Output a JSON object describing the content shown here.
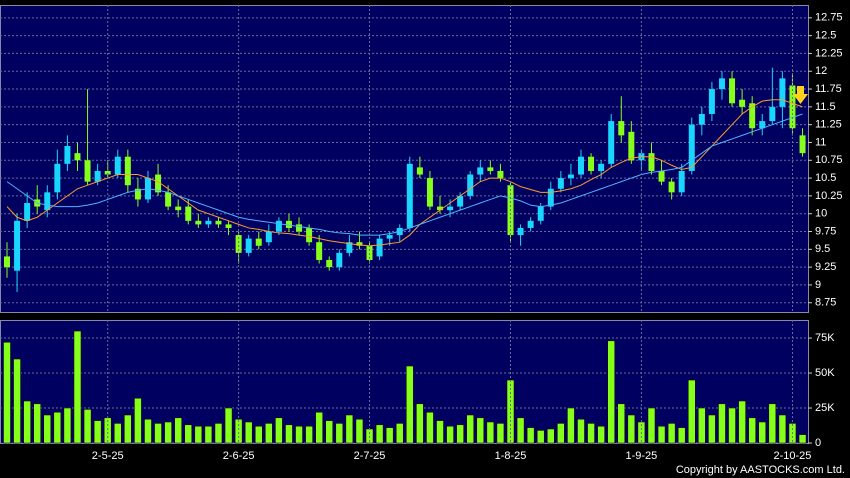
{
  "chart_data": [
    {
      "type": "candlestick",
      "up_color": "#19d6ff",
      "down_color": "#86ff1a",
      "open": [
        9.4,
        9.2,
        9.9,
        10.2,
        10.05,
        10.3,
        10.7,
        10.85,
        10.75,
        10.45,
        10.6,
        10.55,
        10.8,
        10.35,
        10.2,
        10.55,
        10.3,
        10.1,
        10.1,
        9.9,
        9.85,
        9.9,
        9.85,
        9.7,
        9.45,
        9.65,
        9.6,
        9.75,
        9.9,
        9.85,
        9.8,
        9.6,
        9.35,
        9.25,
        9.45,
        9.6,
        9.55,
        9.4,
        9.65,
        9.7,
        9.8,
        10.65,
        10.5,
        10.1,
        10.05,
        10.1,
        10.25,
        10.55,
        10.65,
        10.6,
        10.4,
        9.7,
        9.8,
        9.9,
        10.1,
        10.35,
        10.5,
        10.55,
        10.8,
        10.6,
        10.7,
        11.3,
        11.15,
        10.75,
        10.85,
        10.6,
        10.45,
        10.3,
        10.6,
        11.25,
        11.4,
        11.75,
        11.9,
        11.6,
        11.55,
        11.2,
        11.3,
        11.5,
        11.8,
        11.1
      ],
      "high": [
        9.6,
        10.0,
        10.3,
        10.4,
        10.4,
        10.9,
        11.1,
        11.0,
        11.75,
        10.7,
        10.75,
        10.9,
        10.9,
        10.5,
        10.6,
        10.7,
        10.4,
        10.2,
        10.2,
        10.0,
        9.95,
        9.95,
        9.9,
        9.75,
        9.7,
        9.75,
        9.85,
        9.95,
        10.0,
        9.95,
        9.85,
        9.7,
        9.4,
        9.5,
        9.7,
        9.75,
        9.6,
        9.7,
        9.75,
        9.85,
        10.8,
        10.8,
        10.6,
        10.25,
        10.2,
        10.3,
        10.6,
        10.75,
        10.75,
        10.7,
        10.45,
        9.85,
        9.95,
        10.15,
        10.45,
        10.6,
        10.7,
        10.9,
        10.85,
        10.75,
        11.4,
        11.65,
        11.3,
        10.9,
        11.0,
        10.75,
        10.5,
        10.7,
        11.35,
        11.5,
        11.85,
        12.0,
        12.0,
        11.75,
        11.65,
        11.4,
        12.05,
        12.0,
        11.95,
        11.2
      ],
      "low": [
        9.1,
        8.9,
        9.8,
        10.0,
        9.95,
        10.2,
        10.6,
        10.6,
        10.4,
        10.4,
        10.5,
        10.5,
        10.3,
        10.1,
        10.15,
        10.25,
        10.05,
        9.95,
        9.85,
        9.8,
        9.8,
        9.8,
        9.7,
        9.3,
        9.4,
        9.5,
        9.55,
        9.7,
        9.75,
        9.7,
        9.55,
        9.3,
        9.2,
        9.2,
        9.4,
        9.5,
        9.3,
        9.35,
        9.55,
        9.6,
        9.75,
        10.5,
        10.05,
        10.0,
        9.95,
        10.05,
        10.2,
        10.45,
        10.55,
        10.45,
        9.6,
        9.55,
        9.75,
        9.85,
        10.05,
        10.3,
        10.4,
        10.5,
        10.55,
        10.5,
        10.65,
        11.0,
        10.7,
        10.6,
        10.55,
        10.4,
        10.2,
        10.25,
        10.55,
        11.1,
        11.3,
        11.6,
        11.5,
        11.4,
        11.1,
        11.1,
        11.25,
        11.2,
        11.1,
        10.8
      ],
      "close": [
        9.25,
        9.9,
        10.15,
        10.1,
        10.3,
        10.7,
        10.95,
        10.75,
        10.45,
        10.6,
        10.55,
        10.8,
        10.4,
        10.2,
        10.5,
        10.3,
        10.1,
        10.05,
        9.9,
        9.85,
        9.9,
        9.85,
        9.8,
        9.45,
        9.65,
        9.55,
        9.75,
        9.9,
        9.8,
        9.75,
        9.6,
        9.35,
        9.25,
        9.45,
        9.6,
        9.55,
        9.35,
        9.65,
        9.7,
        9.8,
        10.7,
        10.55,
        10.1,
        10.05,
        10.1,
        10.25,
        10.55,
        10.65,
        10.6,
        10.5,
        9.7,
        9.8,
        9.9,
        10.1,
        10.35,
        10.5,
        10.55,
        10.8,
        10.6,
        10.7,
        11.3,
        11.1,
        10.75,
        10.85,
        10.6,
        10.45,
        10.3,
        10.6,
        11.25,
        11.4,
        11.75,
        11.9,
        11.55,
        11.5,
        11.2,
        11.3,
        11.5,
        11.9,
        11.2,
        10.85
      ],
      "series": [
        {
          "color": "#ff9a2e",
          "values": [
            10.1,
            9.95,
            9.9,
            9.95,
            10.05,
            10.15,
            10.25,
            10.35,
            10.4,
            10.45,
            10.5,
            10.55,
            10.55,
            10.55,
            10.5,
            10.45,
            10.35,
            10.25,
            10.15,
            10.05,
            10.0,
            9.95,
            9.9,
            9.85,
            9.8,
            9.78,
            9.75,
            9.73,
            9.72,
            9.7,
            9.68,
            9.65,
            9.62,
            9.6,
            9.58,
            9.56,
            9.55,
            9.56,
            9.58,
            9.6,
            9.7,
            9.85,
            9.95,
            10.05,
            10.15,
            10.25,
            10.35,
            10.45,
            10.5,
            10.5,
            10.45,
            10.38,
            10.34,
            10.3,
            10.3,
            10.32,
            10.35,
            10.4,
            10.48,
            10.55,
            10.65,
            10.72,
            10.78,
            10.8,
            10.8,
            10.75,
            10.68,
            10.62,
            10.65,
            10.8,
            10.95,
            11.1,
            11.25,
            11.4,
            11.5,
            11.58,
            11.6,
            11.6,
            11.55,
            11.5
          ]
        },
        {
          "color": "#4fb4ff",
          "values": [
            10.45,
            10.35,
            10.25,
            10.15,
            10.12,
            10.1,
            10.1,
            10.1,
            10.12,
            10.15,
            10.2,
            10.25,
            10.3,
            10.33,
            10.35,
            10.33,
            10.3,
            10.25,
            10.2,
            10.15,
            10.1,
            10.05,
            10.0,
            9.95,
            9.92,
            9.9,
            9.88,
            9.86,
            9.84,
            9.82,
            9.8,
            9.78,
            9.75,
            9.73,
            9.72,
            9.7,
            9.7,
            9.7,
            9.72,
            9.75,
            9.8,
            9.85,
            9.9,
            9.95,
            10.0,
            10.05,
            10.1,
            10.15,
            10.2,
            10.25,
            10.22,
            10.18,
            10.12,
            10.1,
            10.12,
            10.15,
            10.2,
            10.25,
            10.3,
            10.35,
            10.4,
            10.45,
            10.5,
            10.55,
            10.58,
            10.6,
            10.62,
            10.65,
            10.75,
            10.85,
            10.95,
            11.0,
            11.05,
            11.1,
            11.15,
            11.2,
            11.25,
            11.3,
            11.35,
            11.4
          ]
        }
      ],
      "ylim": [
        8.62,
        12.93
      ],
      "yticks": [
        8.75,
        9,
        9.25,
        9.5,
        9.75,
        10,
        10.25,
        10.5,
        10.75,
        11,
        11.25,
        11.5,
        11.75,
        12,
        12.25,
        12.5,
        12.75
      ],
      "grid": true
    },
    {
      "type": "bar",
      "color": "#86ff1a",
      "categories": [
        null,
        null,
        null,
        null,
        null,
        null,
        null,
        null,
        null,
        null,
        "2-5-25",
        null,
        null,
        null,
        null,
        null,
        null,
        null,
        null,
        null,
        null,
        null,
        null,
        "2-6-25",
        null,
        null,
        null,
        null,
        null,
        null,
        null,
        null,
        null,
        null,
        null,
        null,
        "2-7-25",
        null,
        null,
        null,
        null,
        null,
        null,
        null,
        null,
        null,
        null,
        null,
        null,
        null,
        "1-8-25",
        null,
        null,
        null,
        null,
        null,
        null,
        null,
        null,
        null,
        null,
        null,
        null,
        "1-9-25",
        null,
        null,
        null,
        null,
        null,
        null,
        null,
        null,
        null,
        null,
        null,
        null,
        null,
        null,
        "2-10-25",
        null
      ],
      "values": [
        72000,
        60000,
        30000,
        28000,
        20000,
        22000,
        25000,
        80000,
        24000,
        16000,
        18000,
        14000,
        20000,
        32000,
        17000,
        14000,
        15000,
        18000,
        13000,
        12000,
        12000,
        14000,
        25000,
        17000,
        15000,
        12000,
        14000,
        18000,
        13000,
        12000,
        12000,
        22000,
        16000,
        14000,
        20000,
        17000,
        10000,
        13000,
        11000,
        14000,
        55000,
        28000,
        22000,
        16000,
        12000,
        13000,
        20000,
        18000,
        15000,
        14000,
        45000,
        18000,
        11000,
        9000,
        10000,
        14000,
        25000,
        17000,
        14000,
        12000,
        73000,
        28000,
        20000,
        15000,
        25000,
        12000,
        14000,
        11000,
        45000,
        25000,
        20000,
        28000,
        25000,
        30000,
        18000,
        15000,
        28000,
        20000,
        14000,
        6000
      ],
      "ylim": [
        0,
        87900
      ],
      "yticks": [
        0,
        {
          "value": 25000,
          "label": "25K"
        },
        {
          "value": 50000,
          "label": "50K"
        },
        {
          "value": 75000,
          "label": "75K"
        }
      ],
      "grid": true,
      "note": "Copyright by AASTOCKS.com Ltd."
    }
  ]
}
